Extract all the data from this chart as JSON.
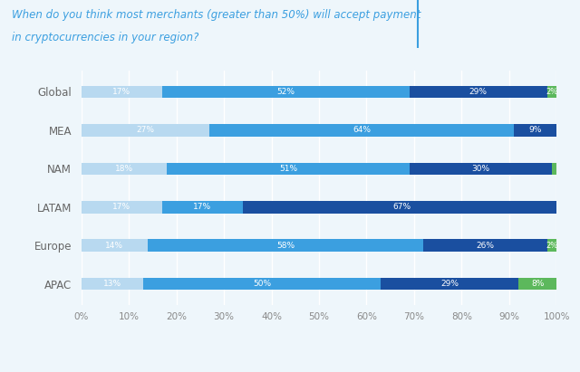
{
  "title_line1": "When do you think most merchants (greater than 50%) will accept payment",
  "title_line2": "in cryptocurrencies in your region?",
  "categories": [
    "Global",
    "MEA",
    "NAM",
    "LATAM",
    "Europe",
    "APAC"
  ],
  "series": {
    "Within the next year": [
      17,
      27,
      18,
      17,
      14,
      13
    ],
    "Within the next 1-3 years": [
      52,
      64,
      51,
      17,
      58,
      50
    ],
    "More than 3 years from now": [
      29,
      9,
      30,
      67,
      26,
      29
    ],
    "Never": [
      2,
      0,
      1,
      0,
      2,
      8
    ]
  },
  "colors": {
    "Within the next year": "#b8d9f0",
    "Within the next 1-3 years": "#3b9fe0",
    "More than 3 years from now": "#1a4fa0",
    "Never": "#5cb85c"
  },
  "bar_height": 0.32,
  "background_color": "#eef6fb",
  "plot_bg_color": "#eef6fb",
  "title_color": "#3b9fe0",
  "label_color": "#ffffff",
  "axis_label_color": "#666666",
  "tick_label_color": "#888888",
  "figsize": [
    6.4,
    4.11
  ],
  "dpi": 100
}
